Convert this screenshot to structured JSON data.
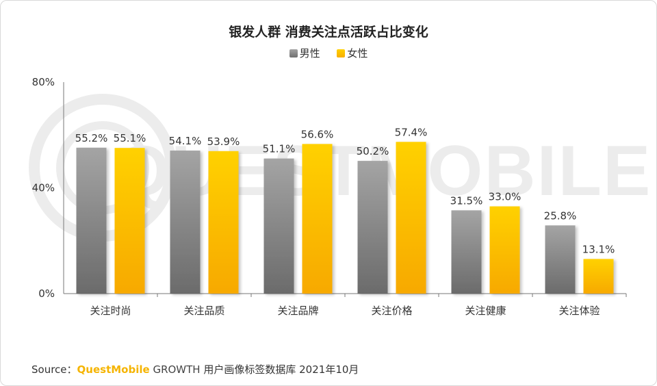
{
  "chart_data": {
    "type": "bar",
    "title": "银发人群 消费关注点活跃占比变化",
    "categories": [
      "关注时尚",
      "关注品质",
      "关注品牌",
      "关注价格",
      "关注健康",
      "关注体验"
    ],
    "series": [
      {
        "name": "男性",
        "values": [
          55.2,
          54.1,
          51.1,
          50.2,
          31.5,
          25.8
        ],
        "color": "#8a8a8a",
        "labels": [
          "55.2%",
          "54.1%",
          "51.1%",
          "50.2%",
          "31.5%",
          "25.8%"
        ]
      },
      {
        "name": "女性",
        "values": [
          55.1,
          53.9,
          56.6,
          57.4,
          33.0,
          13.1
        ],
        "color": "#ffc000",
        "labels": [
          "55.1%",
          "53.9%",
          "56.6%",
          "57.4%",
          "33.0%",
          "13.1%"
        ]
      }
    ],
    "ylim": [
      0,
      80
    ],
    "yticks": [
      "80%",
      "40%",
      "0%"
    ],
    "legend_position": "top-center",
    "grid": false
  },
  "source": {
    "prefix": "Source：",
    "brand": "QuestMobile",
    "growth": "GROWTH",
    "rest": "用户画像标签数据库 2021年10月"
  },
  "watermark": "QUESTMOBILE"
}
